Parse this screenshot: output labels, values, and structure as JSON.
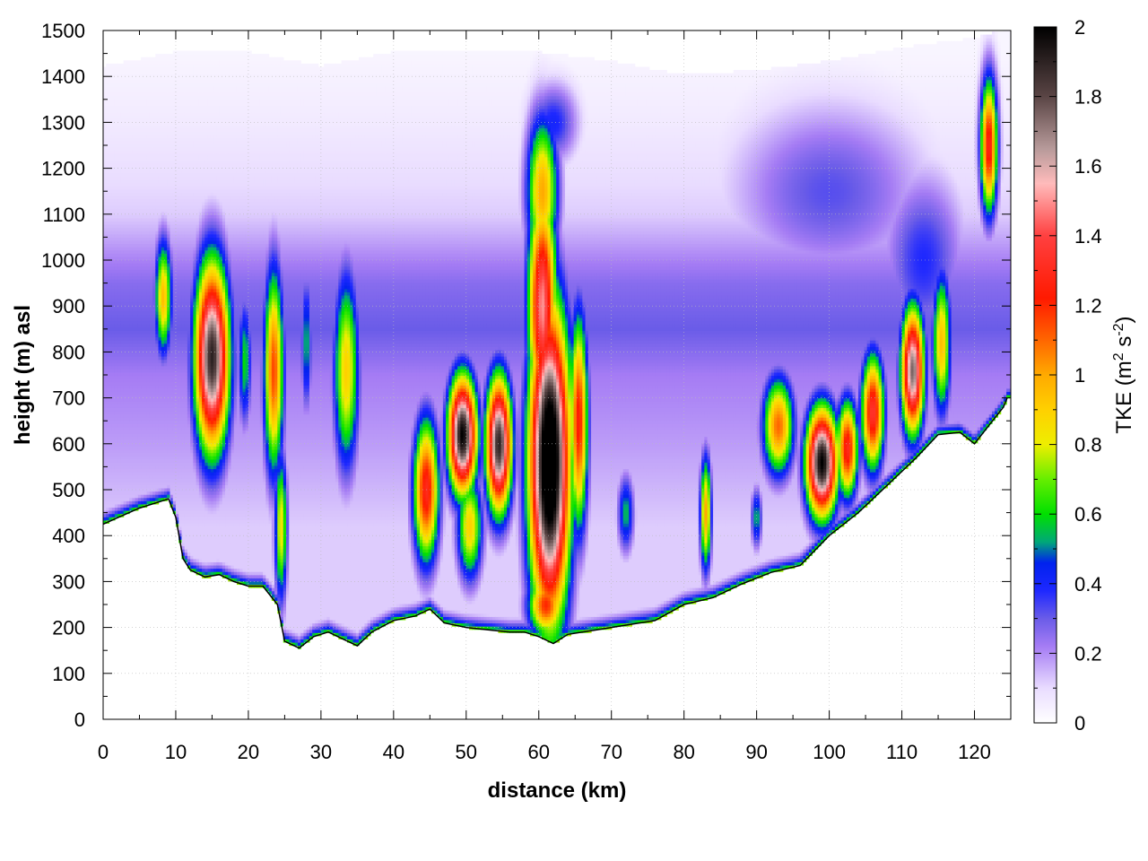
{
  "chart_data": {
    "type": "heatmap",
    "title": "",
    "xlabel": "distance (km)",
    "ylabel": "height (m) asl",
    "xlim": [
      0,
      125
    ],
    "ylim": [
      0,
      1500
    ],
    "x_ticks": [
      0,
      10,
      20,
      30,
      40,
      50,
      60,
      70,
      80,
      90,
      100,
      110,
      120
    ],
    "y_ticks": [
      0,
      100,
      200,
      300,
      400,
      500,
      600,
      700,
      800,
      900,
      1000,
      1100,
      1200,
      1300,
      1400,
      1500
    ],
    "grid": true,
    "colorbar": {
      "label_prefix": "TKE (m",
      "label_sup1": "2",
      "label_mid": " s",
      "label_sup2": "-2",
      "label_suffix": ")",
      "range": [
        0,
        2
      ],
      "ticks": [
        "0",
        "0.2",
        "0.4",
        "0.6",
        "0.8",
        "1",
        "1.2",
        "1.4",
        "1.6",
        "1.8",
        "2"
      ],
      "colormap": [
        {
          "v": 0.0,
          "color": "#ffffff"
        },
        {
          "v": 0.1,
          "color": "#e9dcff"
        },
        {
          "v": 0.22,
          "color": "#a57cf4"
        },
        {
          "v": 0.3,
          "color": "#6a5ce8"
        },
        {
          "v": 0.38,
          "color": "#1e28ff"
        },
        {
          "v": 0.46,
          "color": "#0022ee"
        },
        {
          "v": 0.52,
          "color": "#00a878"
        },
        {
          "v": 0.6,
          "color": "#00e000"
        },
        {
          "v": 0.7,
          "color": "#66ee00"
        },
        {
          "v": 0.8,
          "color": "#eeee00"
        },
        {
          "v": 0.9,
          "color": "#ffd000"
        },
        {
          "v": 1.0,
          "color": "#ffaa00"
        },
        {
          "v": 1.1,
          "color": "#ff6600"
        },
        {
          "v": 1.22,
          "color": "#ff1a00"
        },
        {
          "v": 1.4,
          "color": "#ff4040"
        },
        {
          "v": 1.55,
          "color": "#ffbbbb"
        },
        {
          "v": 1.65,
          "color": "#b79a9a"
        },
        {
          "v": 1.8,
          "color": "#5a4545"
        },
        {
          "v": 2.0,
          "color": "#000000"
        }
      ]
    },
    "terrain": [
      [
        0,
        425
      ],
      [
        5,
        460
      ],
      [
        8,
        475
      ],
      [
        9,
        480
      ],
      [
        10,
        440
      ],
      [
        11,
        350
      ],
      [
        12,
        325
      ],
      [
        14,
        310
      ],
      [
        16,
        315
      ],
      [
        18,
        300
      ],
      [
        20,
        290
      ],
      [
        22,
        290
      ],
      [
        24,
        250
      ],
      [
        25,
        170
      ],
      [
        27,
        155
      ],
      [
        29,
        180
      ],
      [
        31,
        190
      ],
      [
        33,
        175
      ],
      [
        35,
        160
      ],
      [
        37,
        190
      ],
      [
        40,
        215
      ],
      [
        43,
        225
      ],
      [
        45,
        240
      ],
      [
        47,
        210
      ],
      [
        50,
        200
      ],
      [
        53,
        195
      ],
      [
        56,
        190
      ],
      [
        58,
        190
      ],
      [
        60,
        180
      ],
      [
        62,
        165
      ],
      [
        64,
        185
      ],
      [
        66,
        190
      ],
      [
        68,
        195
      ],
      [
        72,
        205
      ],
      [
        76,
        215
      ],
      [
        80,
        250
      ],
      [
        84,
        265
      ],
      [
        88,
        295
      ],
      [
        92,
        320
      ],
      [
        96,
        335
      ],
      [
        100,
        400
      ],
      [
        104,
        450
      ],
      [
        108,
        510
      ],
      [
        112,
        570
      ],
      [
        115,
        620
      ],
      [
        118,
        625
      ],
      [
        120,
        600
      ],
      [
        122,
        640
      ],
      [
        124,
        680
      ],
      [
        124.5,
        700
      ]
    ],
    "top_envelope": [
      [
        0,
        1420
      ],
      [
        10,
        1450
      ],
      [
        20,
        1450
      ],
      [
        30,
        1420
      ],
      [
        40,
        1450
      ],
      [
        50,
        1450
      ],
      [
        60,
        1450
      ],
      [
        70,
        1430
      ],
      [
        80,
        1400
      ],
      [
        90,
        1410
      ],
      [
        100,
        1430
      ],
      [
        110,
        1460
      ],
      [
        120,
        1480
      ],
      [
        124.5,
        1500
      ]
    ],
    "background_tke": [
      {
        "z": 420,
        "tke": 0.12
      },
      {
        "z": 600,
        "tke": 0.18
      },
      {
        "z": 750,
        "tke": 0.22
      },
      {
        "z": 850,
        "tke": 0.3
      },
      {
        "z": 950,
        "tke": 0.26
      },
      {
        "z": 1100,
        "tke": 0.12
      },
      {
        "z": 1300,
        "tke": 0.06
      },
      {
        "z": 1450,
        "tke": 0.03
      }
    ],
    "blobs": [
      {
        "x": 8.3,
        "z": 920,
        "tke": 0.95,
        "sx": 1.2,
        "sz": 130
      },
      {
        "x": 15,
        "z": 790,
        "tke": 1.9,
        "sx": 2.4,
        "sz": 210
      },
      {
        "x": 19.5,
        "z": 780,
        "tke": 0.6,
        "sx": 1.0,
        "sz": 150
      },
      {
        "x": 23.5,
        "z": 760,
        "tke": 1.15,
        "sx": 1.4,
        "sz": 230
      },
      {
        "x": 24.5,
        "z": 420,
        "tke": 0.85,
        "sx": 0.9,
        "sz": 170
      },
      {
        "x": 28,
        "z": 820,
        "tke": 0.55,
        "sx": 0.8,
        "sz": 160
      },
      {
        "x": 33.5,
        "z": 760,
        "tke": 0.9,
        "sx": 1.8,
        "sz": 220
      },
      {
        "x": 44.5,
        "z": 500,
        "tke": 1.3,
        "sx": 1.8,
        "sz": 160
      },
      {
        "x": 49.5,
        "z": 620,
        "tke": 2.0,
        "sx": 2.0,
        "sz": 130
      },
      {
        "x": 50.5,
        "z": 420,
        "tke": 0.9,
        "sx": 1.8,
        "sz": 120
      },
      {
        "x": 54.5,
        "z": 600,
        "tke": 1.9,
        "sx": 1.8,
        "sz": 150
      },
      {
        "x": 61.5,
        "z": 560,
        "tke": 2.3,
        "sx": 2.8,
        "sz": 340
      },
      {
        "x": 60.5,
        "z": 900,
        "tke": 1.5,
        "sx": 2.0,
        "sz": 260
      },
      {
        "x": 60.5,
        "z": 1150,
        "tke": 1.0,
        "sx": 2.2,
        "sz": 170
      },
      {
        "x": 61,
        "z": 250,
        "tke": 1.2,
        "sx": 2.5,
        "sz": 70
      },
      {
        "x": 65.5,
        "z": 650,
        "tke": 1.25,
        "sx": 1.3,
        "sz": 240
      },
      {
        "x": 72,
        "z": 450,
        "tke": 0.55,
        "sx": 1.2,
        "sz": 90
      },
      {
        "x": 83,
        "z": 450,
        "tke": 1.0,
        "sx": 0.8,
        "sz": 130
      },
      {
        "x": 90,
        "z": 440,
        "tke": 0.55,
        "sx": 0.8,
        "sz": 70
      },
      {
        "x": 93,
        "z": 640,
        "tke": 1.1,
        "sx": 2.2,
        "sz": 110
      },
      {
        "x": 99,
        "z": 560,
        "tke": 2.0,
        "sx": 2.2,
        "sz": 120
      },
      {
        "x": 102.5,
        "z": 590,
        "tke": 1.3,
        "sx": 1.5,
        "sz": 110
      },
      {
        "x": 106,
        "z": 670,
        "tke": 1.35,
        "sx": 1.6,
        "sz": 130
      },
      {
        "x": 111.5,
        "z": 760,
        "tke": 1.75,
        "sx": 1.6,
        "sz": 140
      },
      {
        "x": 115.5,
        "z": 820,
        "tke": 0.95,
        "sx": 1.3,
        "sz": 160
      },
      {
        "x": 122,
        "z": 1250,
        "tke": 1.3,
        "sx": 1.2,
        "sz": 150
      },
      {
        "x": 100,
        "z": 1150,
        "tke": 0.32,
        "sx": 14,
        "sz": 200
      },
      {
        "x": 113,
        "z": 1000,
        "tke": 0.38,
        "sx": 6,
        "sz": 200
      },
      {
        "x": 62,
        "z": 1300,
        "tke": 0.4,
        "sx": 3.5,
        "sz": 90
      }
    ]
  }
}
